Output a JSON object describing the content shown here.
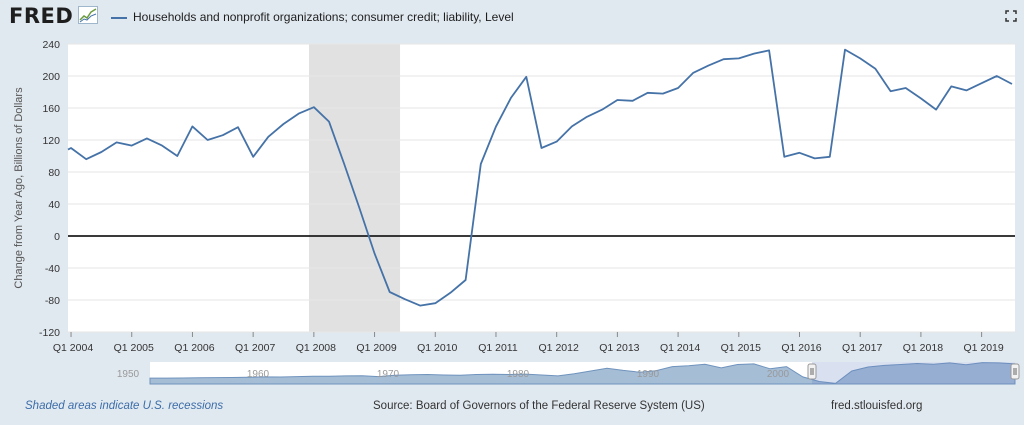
{
  "header": {
    "logo_text": "FRED",
    "legend_label": "Households and nonprofit organizations; consumer credit; liability, Level",
    "series_color": "#4572a7"
  },
  "footer": {
    "recession_note": "Shaded areas indicate U.S. recessions",
    "source": "Source: Board of Governors of the Federal Reserve System (US)",
    "website": "fred.stlouisfed.org"
  },
  "icons": {
    "fullscreen": "fullscreen-icon",
    "logo_graph": "fred-graph-icon"
  },
  "chart_data": {
    "type": "line",
    "ylabel": "Change from Year Ago, Billions of Dollars",
    "ylim": [
      -120,
      240
    ],
    "yticks": [
      -120,
      -80,
      -40,
      0,
      40,
      80,
      120,
      160,
      200,
      240
    ],
    "xlim": [
      2003.95,
      2019.55
    ],
    "xticks": [
      {
        "value": 2004,
        "label": "Q1 2004"
      },
      {
        "value": 2005,
        "label": "Q1 2005"
      },
      {
        "value": 2006,
        "label": "Q1 2006"
      },
      {
        "value": 2007,
        "label": "Q1 2007"
      },
      {
        "value": 2008,
        "label": "Q1 2008"
      },
      {
        "value": 2009,
        "label": "Q1 2009"
      },
      {
        "value": 2010,
        "label": "Q1 2010"
      },
      {
        "value": 2011,
        "label": "Q1 2011"
      },
      {
        "value": 2012,
        "label": "Q1 2012"
      },
      {
        "value": 2013,
        "label": "Q1 2013"
      },
      {
        "value": 2014,
        "label": "Q1 2014"
      },
      {
        "value": 2015,
        "label": "Q1 2015"
      },
      {
        "value": 2016,
        "label": "Q1 2016"
      },
      {
        "value": 2017,
        "label": "Q1 2017"
      },
      {
        "value": 2018,
        "label": "Q1 2018"
      },
      {
        "value": 2019,
        "label": "Q1 2019"
      }
    ],
    "recessions": [
      {
        "start": 2007.92,
        "end": 2009.42
      }
    ],
    "grid": true,
    "zero_line": true,
    "series": [
      {
        "color": "#4572a7",
        "x": [
          2003.95,
          2004.0,
          2004.25,
          2004.5,
          2004.75,
          2005.0,
          2005.25,
          2005.5,
          2005.75,
          2006.0,
          2006.25,
          2006.5,
          2006.75,
          2007.0,
          2007.25,
          2007.5,
          2007.75,
          2008.0,
          2008.25,
          2008.5,
          2008.75,
          2009.0,
          2009.25,
          2009.5,
          2009.75,
          2010.0,
          2010.25,
          2010.5,
          2010.75,
          2011.0,
          2011.25,
          2011.5,
          2011.75,
          2012.0,
          2012.25,
          2012.5,
          2012.75,
          2013.0,
          2013.25,
          2013.5,
          2013.75,
          2014.0,
          2014.25,
          2014.5,
          2014.75,
          2015.0,
          2015.25,
          2015.5,
          2015.75,
          2016.0,
          2016.25,
          2016.5,
          2016.75,
          2017.0,
          2017.25,
          2017.5,
          2017.75,
          2018.0,
          2018.25,
          2018.5,
          2018.75,
          2019.0,
          2019.25,
          2019.5
        ],
        "y": [
          108,
          110,
          96,
          105,
          117,
          113,
          122,
          113,
          100,
          137,
          120,
          126,
          136,
          99,
          124,
          140,
          153,
          161,
          143,
          90,
          35,
          -22,
          -70,
          -79,
          -87,
          -84,
          -71,
          -55,
          90,
          137,
          173,
          199,
          110,
          118,
          137,
          149,
          158,
          170,
          169,
          179,
          178,
          185,
          204,
          213,
          221,
          222,
          228,
          232,
          99,
          104,
          97,
          99,
          233,
          222,
          209,
          181,
          185,
          172,
          158,
          187,
          182,
          191,
          200,
          190
        ]
      }
    ]
  },
  "navigator": {
    "labels": [
      "1950",
      "1960",
      "1970",
      "1980",
      "1990",
      "2000"
    ],
    "values": [
      10,
      10,
      11,
      12,
      13,
      14,
      16,
      18,
      17,
      20,
      22,
      22,
      24,
      25,
      20,
      28,
      32,
      33,
      30,
      28,
      33,
      35,
      33,
      36,
      30,
      24,
      38,
      56,
      74,
      60,
      48,
      58,
      84,
      90,
      99,
      76,
      98,
      102,
      70,
      84,
      18,
      -12,
      -24,
      56,
      82,
      92,
      98,
      104,
      100,
      108,
      96,
      110,
      108,
      102
    ]
  }
}
